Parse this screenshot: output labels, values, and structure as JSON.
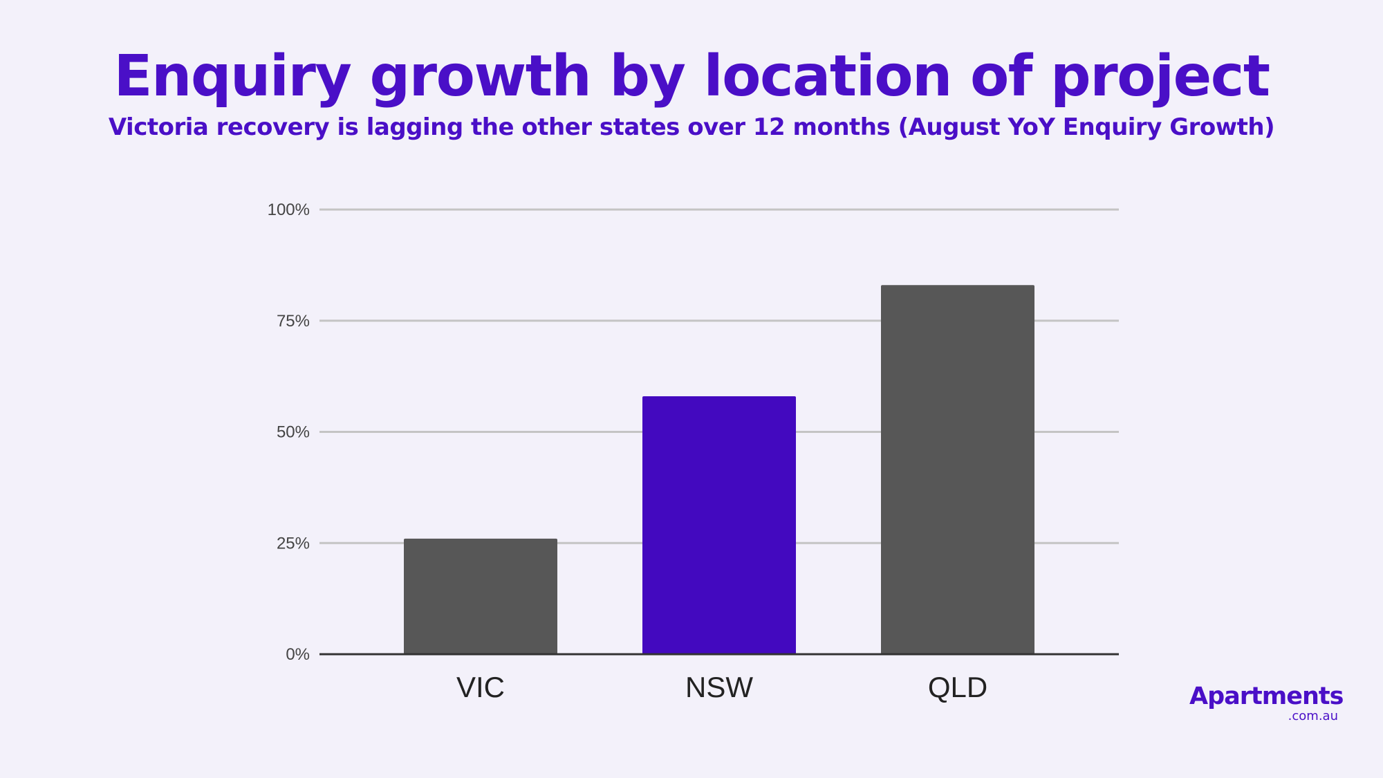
{
  "header": {
    "title": "Enquiry growth by location of project",
    "subtitle": "Victoria recovery is lagging the other states over 12 months (August YoY Enquiry Growth)"
  },
  "logo": {
    "name": "Apartments",
    "domain": ".com.au"
  },
  "chart_data": {
    "type": "bar",
    "title": "Enquiry growth by location of project",
    "subtitle": "Victoria recovery is lagging the other states over 12 months (August YoY Enquiry Growth)",
    "categories": [
      "VIC",
      "NSW",
      "QLD"
    ],
    "values": [
      26,
      58,
      83
    ],
    "value_unit": "%",
    "xlabel": "",
    "ylabel": "",
    "ylim": [
      0,
      100
    ],
    "yticks": [
      0,
      25,
      50,
      75,
      100
    ],
    "ytick_labels": [
      "0%",
      "25%",
      "50%",
      "75%",
      "100%"
    ],
    "grid": true,
    "legend": "none",
    "colors": [
      "#575757",
      "#4309bf",
      "#575757"
    ]
  }
}
